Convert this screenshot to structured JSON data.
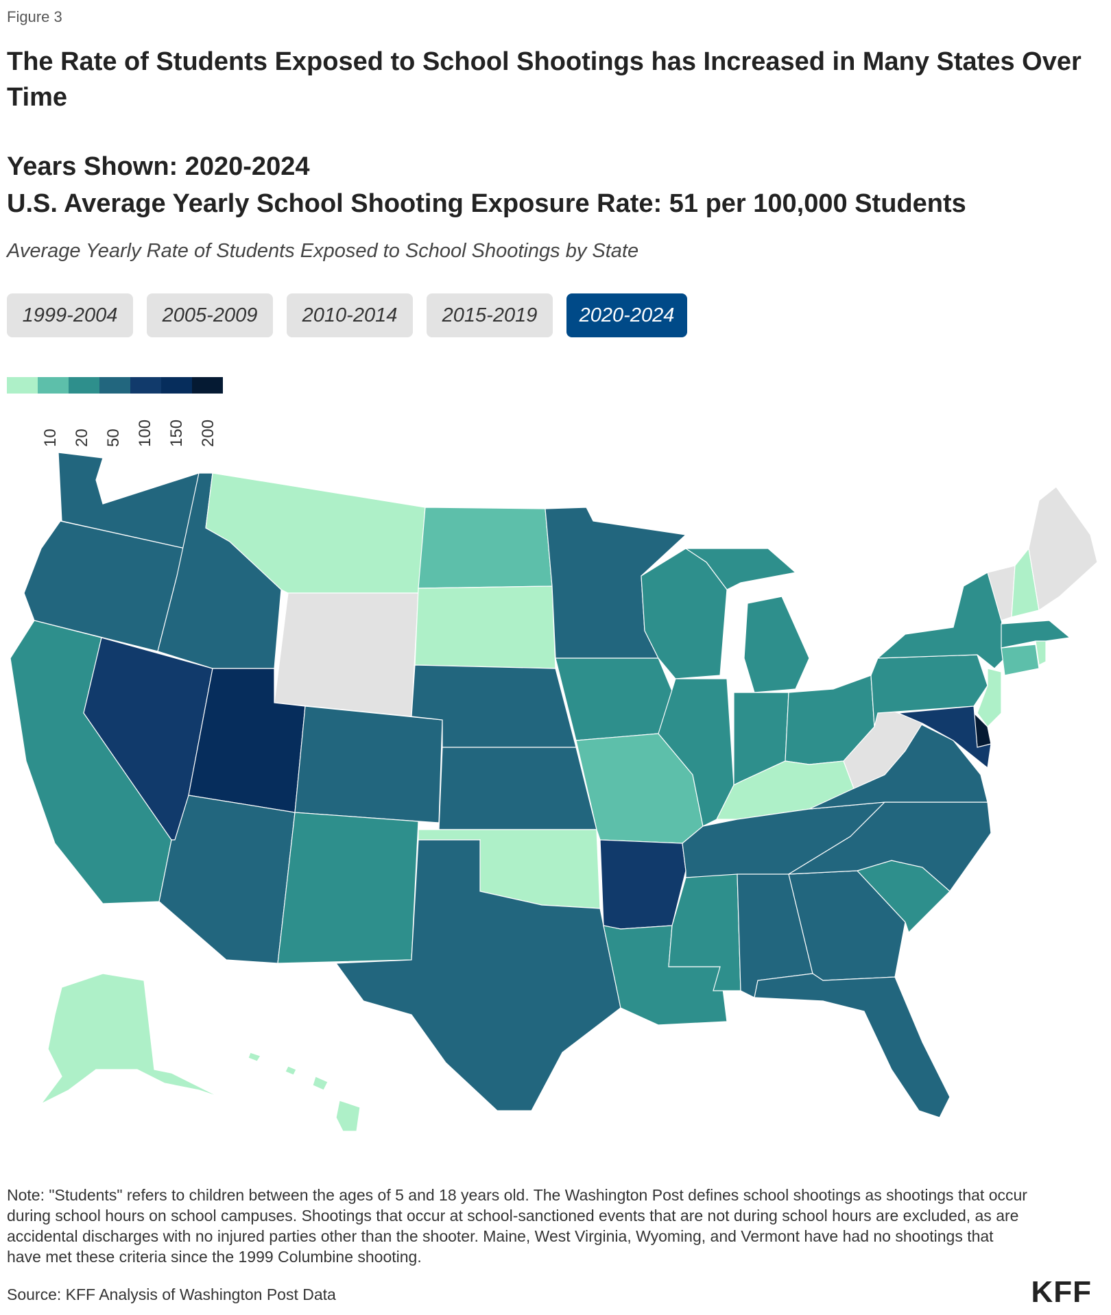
{
  "figure_label": "Figure 3",
  "title": "The Rate of Students Exposed to School Shootings has Increased in Many States Over Time",
  "years_shown": "Years Shown: 2020-2024",
  "us_average": "U.S. Average Yearly School Shooting Exposure Rate: 51 per 100,000 Students",
  "subtitle": "Average Yearly Rate of Students Exposed to School Shootings by State",
  "period_buttons": [
    {
      "label": "1999-2004",
      "active": false
    },
    {
      "label": "2005-2009",
      "active": false
    },
    {
      "label": "2010-2014",
      "active": false
    },
    {
      "label": "2015-2019",
      "active": false
    },
    {
      "label": "2020-2024",
      "active": true
    }
  ],
  "legend": {
    "colors": [
      "#aef0c8",
      "#5dbfaa",
      "#2e8f8c",
      "#22667e",
      "#113a6b",
      "#062d5c",
      "#051a33"
    ],
    "ticks": [
      "10",
      "20",
      "50",
      "100",
      "150",
      "200"
    ]
  },
  "no_data_color": "#e2e2e2",
  "state_bins": {
    "WA": 3,
    "OR": 3,
    "CA": 2,
    "NV": 4,
    "ID": 3,
    "MT": 0,
    "WY": -1,
    "UT": 5,
    "AZ": 3,
    "NM": 2,
    "CO": 3,
    "ND": 1,
    "SD": 0,
    "NE": 3,
    "KS": 3,
    "OK": 0,
    "TX": 3,
    "MN": 3,
    "IA": 2,
    "MO": 1,
    "AR": 4,
    "LA": 2,
    "WI": 2,
    "IL": 2,
    "MI": 2,
    "IN": 2,
    "OH": 2,
    "KY": 0,
    "TN": 3,
    "MS": 2,
    "AL": 3,
    "GA": 3,
    "FL": 3,
    "SC": 2,
    "NC": 3,
    "VA": 3,
    "WV": -1,
    "PA": 2,
    "NY": 2,
    "VT": -1,
    "NH": 0,
    "ME": -1,
    "MA": 2,
    "RI": 0,
    "CT": 1,
    "NJ": 0,
    "DE": 6,
    "MD": 4,
    "AK": 0,
    "HI": 0
  },
  "note": "Note: \"Students\" refers to children between the ages of 5 and 18 years old. The Washington Post defines school shootings as shootings that occur during school hours on school campuses. Shootings that occur at school-sanctioned events that are not during school hours are excluded, as are accidental discharges with no injured parties other than the shooter. Maine, West Virginia, Wyoming, and Vermont have had no shootings that have met these criteria since the 1999 Columbine shooting.",
  "source": "Source: KFF Analysis of Washington Post Data",
  "logo": "KFF"
}
